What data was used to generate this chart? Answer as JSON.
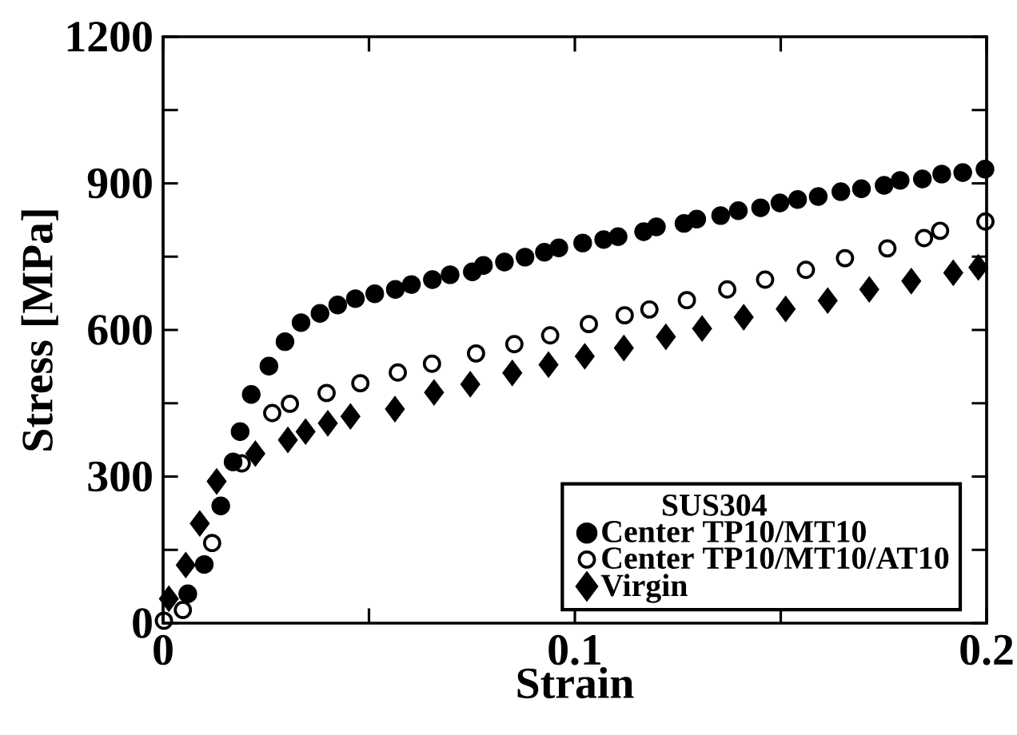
{
  "chart_data": {
    "type": "scatter",
    "xlabel": "Strain",
    "ylabel": "Stress [MPa]",
    "legend_title": "SUS304",
    "legend": "bottom right",
    "xlim": [
      0,
      0.2
    ],
    "ylim": [
      0,
      1200
    ],
    "xticks": [
      0,
      {
        "value": 0.05,
        "label": null
      },
      0.1,
      {
        "value": 0.15,
        "label": null
      },
      0.2
    ],
    "yticks": [
      0,
      {
        "value": 150,
        "label": null
      },
      300,
      {
        "value": 450,
        "label": null
      },
      600,
      {
        "value": 750,
        "label": null
      },
      900,
      {
        "value": 1050,
        "label": null
      },
      1200
    ],
    "series": [
      {
        "name": "Center TP10/MT10",
        "color": "#000000",
        "marker": "circle",
        "x": [
          0.006,
          0.01,
          0.014,
          0.017,
          0.0187,
          0.0214,
          0.0257,
          0.0296,
          0.0335,
          0.0381,
          0.0424,
          0.0467,
          0.0514,
          0.0564,
          0.0603,
          0.0654,
          0.0697,
          0.0751,
          0.0778,
          0.0829,
          0.0879,
          0.0926,
          0.0961,
          0.1019,
          0.107,
          0.1105,
          0.1167,
          0.1198,
          0.1265,
          0.1296,
          0.1354,
          0.1397,
          0.1451,
          0.1498,
          0.1541,
          0.1591,
          0.1646,
          0.1696,
          0.1751,
          0.179,
          0.1844,
          0.1891,
          0.1942,
          0.1996
        ],
        "values": [
          60,
          120,
          240,
          330,
          392,
          468,
          526,
          576,
          615,
          634,
          651,
          664,
          674,
          683,
          693,
          703,
          713,
          719,
          732,
          739,
          749,
          759,
          768,
          778,
          785,
          791,
          801,
          811,
          818,
          827,
          834,
          844,
          850,
          860,
          867,
          873,
          883,
          889,
          896,
          906,
          909,
          919,
          922,
          929
        ]
      },
      {
        "name": "Center TP10/MT10/AT10",
        "color": "#000000",
        "marker": "circle-open",
        "x": [
          0.0002,
          0.0048,
          0.0119,
          0.0191,
          0.0265,
          0.0308,
          0.0397,
          0.0479,
          0.057,
          0.0653,
          0.076,
          0.0853,
          0.094,
          0.1034,
          0.1121,
          0.1181,
          0.1272,
          0.137,
          0.1462,
          0.1561,
          0.1656,
          0.1759,
          0.1848,
          0.1887,
          0.1997
        ],
        "values": [
          5,
          27,
          164,
          327,
          430,
          449,
          471,
          491,
          513,
          531,
          552,
          571,
          589,
          612,
          630,
          642,
          661,
          683,
          703,
          723,
          747,
          767,
          788,
          803,
          822
        ]
      },
      {
        "name": "Virgin",
        "color": "#000000",
        "marker": "diamond",
        "x": [
          0.0014,
          0.0055,
          0.0089,
          0.013,
          0.0224,
          0.0303,
          0.0346,
          0.04,
          0.0455,
          0.0563,
          0.0658,
          0.0746,
          0.0848,
          0.0936,
          0.1024,
          0.1119,
          0.1221,
          0.1309,
          0.141,
          0.1512,
          0.1614,
          0.1715,
          0.1817,
          0.1919,
          0.198
        ],
        "values": [
          50,
          119,
          204,
          290,
          347,
          375,
          392,
          409,
          423,
          438,
          472,
          489,
          512,
          529,
          546,
          563,
          586,
          603,
          626,
          643,
          660,
          683,
          700,
          717,
          728
        ]
      }
    ]
  }
}
